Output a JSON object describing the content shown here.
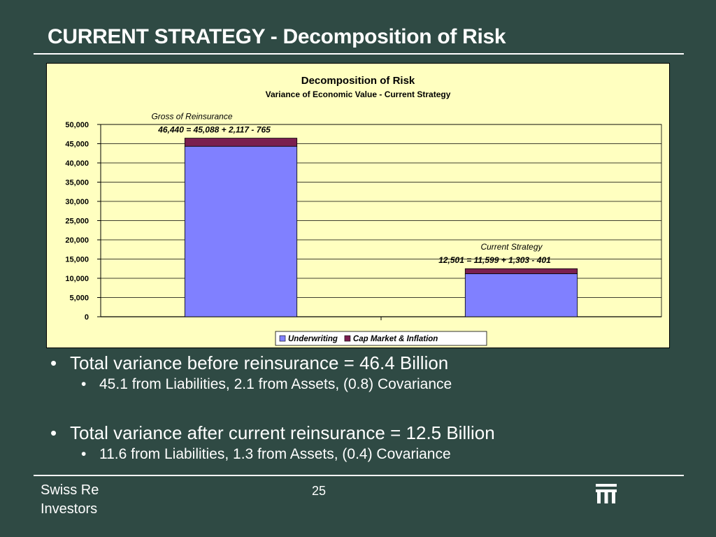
{
  "slide": {
    "title": "CURRENT STRATEGY - Decomposition of Risk",
    "bullets": [
      {
        "text": "Total variance before reinsurance = 46.4 Billion",
        "sub": "45.1 from Liabilities, 2.1 from Assets, (0.8) Covariance"
      },
      {
        "text": "Total variance after current reinsurance = 12.5 Billion",
        "sub": "11.6 from Liabilities, 1.3 from Assets, (0.4) Covariance"
      }
    ],
    "footer": {
      "company_line1": "Swiss Re",
      "company_line2": "Investors",
      "page": "25"
    },
    "bullet_char": "•"
  },
  "chart_data": {
    "type": "bar",
    "stacked": true,
    "title": "Decomposition of Risk",
    "subtitle": "Variance of Economic Value - Current Strategy",
    "categories": [
      "Gross of Reinsurance",
      "Current Strategy"
    ],
    "series": [
      {
        "name": "Underwriting",
        "values": [
          44323,
          11198
        ],
        "color": "#8080ff"
      },
      {
        "name": "Cap Market & Inflation",
        "values": [
          2117,
          1303
        ],
        "color": "#7a1f4f"
      }
    ],
    "annotations": [
      "46,440 = 45,088 + 2,117 - 765",
      "12,501 = 11,599 + 1,303 - 401"
    ],
    "ylim": [
      0,
      50000
    ],
    "yticks": [
      0,
      5000,
      10000,
      15000,
      20000,
      25000,
      30000,
      35000,
      40000,
      45000,
      50000
    ],
    "ytick_labels": [
      "0",
      "5,000",
      "10,000",
      "15,000",
      "20,000",
      "25,000",
      "30,000",
      "35,000",
      "40,000",
      "45,000",
      "50,000"
    ],
    "grid": true,
    "legend": "bottom-center",
    "plot_background": "#ffffc0"
  }
}
